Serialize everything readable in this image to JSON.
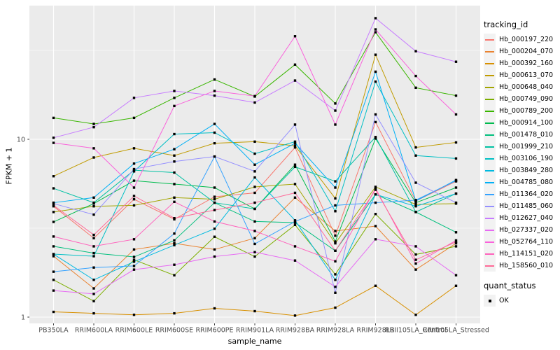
{
  "chart_data": {
    "type": "line",
    "xlabel": "sample_name",
    "ylabel": "FPKM + 1",
    "y_scale": "log10",
    "y_ticks": [
      1,
      10
    ],
    "y_minor_ticks": [
      3.162,
      31.62
    ],
    "ylim": [
      0.93,
      57
    ],
    "grid": "on",
    "panel_bg": "#EBEBEB",
    "grid_color": "#FFFFFF",
    "tick_label_color": "#4D4D4D",
    "point_shape": "filled-square",
    "point_color": "#000000",
    "legend_title": "tracking_id",
    "legend2_title": "quant_status",
    "quant_status": {
      "label": "OK"
    },
    "categories": [
      "PB350LA",
      "RRIM600LA",
      "RRIM600LE",
      "RRIM600SE",
      "RRIM600PE",
      "RRIM901LA",
      "RRIM928BA",
      "RRIM928LA",
      "RRIM928LB",
      "RRII105LA_Control",
      "RRII105LA_Stressed"
    ],
    "series": [
      {
        "name": "Hb_000197_220",
        "color": "#F8766D",
        "values": [
          4.2,
          2.78,
          4.6,
          3.55,
          4.75,
          5.0,
          9.0,
          2.87,
          12.5,
          4.5,
          5.8
        ]
      },
      {
        "name": "Hb_000204_070",
        "color": "#EA8331",
        "values": [
          2.2,
          1.45,
          2.4,
          2.6,
          2.4,
          2.78,
          4.7,
          3.05,
          3.25,
          1.85,
          2.6
        ]
      },
      {
        "name": "Hb_000392_160",
        "color": "#D89000",
        "values": [
          1.07,
          1.05,
          1.03,
          1.05,
          1.12,
          1.08,
          1.02,
          1.13,
          1.5,
          1.03,
          1.5
        ]
      },
      {
        "name": "Hb_000613_070",
        "color": "#C09B00",
        "values": [
          6.2,
          7.9,
          8.9,
          8.1,
          9.5,
          9.7,
          9.2,
          4.65,
          29.9,
          9.0,
          9.6
        ]
      },
      {
        "name": "Hb_000648_040",
        "color": "#A3A500",
        "values": [
          3.9,
          4.2,
          4.25,
          4.7,
          4.6,
          5.4,
          5.6,
          2.6,
          5.4,
          4.3,
          4.35
        ]
      },
      {
        "name": "Hb_000749_090",
        "color": "#7CAE00",
        "values": [
          1.62,
          1.23,
          2.1,
          1.72,
          2.83,
          2.19,
          3.3,
          1.74,
          3.8,
          2.25,
          2.5
        ]
      },
      {
        "name": "Hb_000789_200",
        "color": "#39B600",
        "values": [
          13.2,
          12.2,
          13.2,
          17.1,
          21.7,
          17.4,
          26.3,
          15.9,
          40,
          19.5,
          17.6
        ]
      },
      {
        "name": "Hb_000914_100",
        "color": "#00BB4E",
        "values": [
          3.43,
          4.35,
          5.85,
          5.6,
          5.35,
          4.06,
          7.2,
          2.66,
          10.1,
          4.4,
          5.35
        ]
      },
      {
        "name": "Hb_001478_010",
        "color": "#00BF7D",
        "values": [
          2.5,
          2.29,
          2.18,
          2.7,
          4.4,
          3.45,
          3.4,
          2.36,
          4.9,
          3.9,
          3.0
        ]
      },
      {
        "name": "Hb_001999_210",
        "color": "#00C1A3",
        "values": [
          5.3,
          4.4,
          6.7,
          6.5,
          4.4,
          4.06,
          7.0,
          5.8,
          10.3,
          3.9,
          4.95
        ]
      },
      {
        "name": "Hb_003106_190",
        "color": "#00BFC4",
        "values": [
          2.26,
          2.2,
          6.6,
          10.7,
          10.9,
          8.3,
          9.7,
          3.94,
          21.1,
          8.1,
          7.8
        ]
      },
      {
        "name": "Hb_003849_280",
        "color": "#00BAE0",
        "values": [
          2.26,
          1.62,
          2.05,
          2.54,
          3.14,
          6.1,
          3.5,
          1.62,
          4.9,
          4.2,
          4.95
        ]
      },
      {
        "name": "Hb_004785_080",
        "color": "#00B0F6",
        "values": [
          4.4,
          4.7,
          7.3,
          8.8,
          12.2,
          7.2,
          9.5,
          5.35,
          24,
          4.5,
          5.9
        ]
      },
      {
        "name": "Hb_011364_020",
        "color": "#35A2FF",
        "values": [
          1.8,
          1.9,
          1.94,
          2.95,
          8.0,
          2.58,
          3.45,
          4.25,
          4.4,
          4.55,
          5.85
        ]
      },
      {
        "name": "Hb_011485_060",
        "color": "#9590FF",
        "values": [
          4.35,
          3.77,
          6.8,
          7.5,
          8.0,
          6.6,
          12.1,
          1.37,
          13.8,
          5.7,
          4.4
        ]
      },
      {
        "name": "Hb_012627_040",
        "color": "#C77CFF",
        "values": [
          10.2,
          11.7,
          17.1,
          18.7,
          17.6,
          16.1,
          21.4,
          14.5,
          48,
          31.3,
          27.3
        ]
      },
      {
        "name": "Hb_027337_020",
        "color": "#E76BF3",
        "values": [
          1.41,
          1.35,
          1.85,
          1.97,
          2.19,
          2.32,
          2.08,
          1.48,
          2.74,
          2.5,
          1.72
        ]
      },
      {
        "name": "Hb_052764_110",
        "color": "#FA62DB",
        "values": [
          9.55,
          8.9,
          5.35,
          15.4,
          18.7,
          17.5,
          38,
          12.1,
          41.5,
          22.7,
          13.8
        ]
      },
      {
        "name": "Hb_114151_020",
        "color": "#FF62BC",
        "values": [
          2.84,
          2.5,
          2.74,
          4.45,
          3.45,
          3.05,
          2.5,
          2.06,
          5.3,
          2.0,
          2.7
        ]
      },
      {
        "name": "Hb_158560_010",
        "color": "#FF6A98",
        "values": [
          4.25,
          2.9,
          4.8,
          3.6,
          4.0,
          4.4,
          5.0,
          2.36,
          5.2,
          2.1,
          2.65
        ]
      }
    ]
  }
}
